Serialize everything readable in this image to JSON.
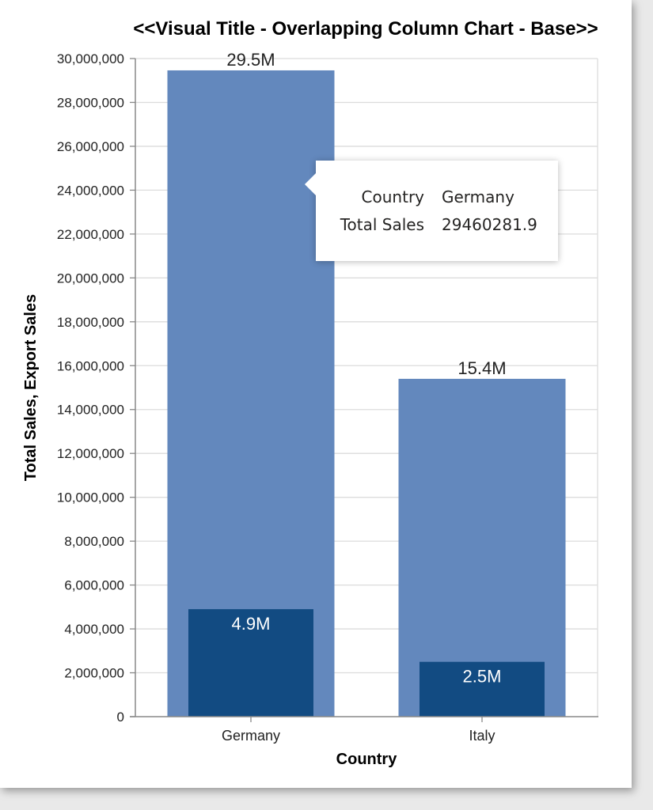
{
  "chart_data": {
    "type": "bar",
    "layout": "overlapping",
    "title": "<<Visual Title - Overlapping Column Chart - Base>>",
    "xlabel": "Country",
    "ylabel": "Total Sales, Export Sales",
    "categories": [
      "Germany",
      "Italy"
    ],
    "series": [
      {
        "values": [
          29460281.9,
          15400000
        ],
        "labels": [
          "29.5M",
          "15.4M"
        ],
        "color": "#6388bd"
      },
      {
        "values": [
          4900000,
          2500000
        ],
        "labels": [
          "4.9M",
          "2.5M"
        ],
        "color": "#124b82"
      }
    ],
    "ylim": [
      0,
      30000000
    ],
    "yticks": [
      0,
      2000000,
      4000000,
      6000000,
      8000000,
      10000000,
      12000000,
      14000000,
      16000000,
      18000000,
      20000000,
      22000000,
      24000000,
      26000000,
      28000000,
      30000000
    ],
    "ytick_labels": [
      "0",
      "2,000,000",
      "4,000,000",
      "6,000,000",
      "8,000,000",
      "10,000,000",
      "12,000,000",
      "14,000,000",
      "16,000,000",
      "18,000,000",
      "20,000,000",
      "22,000,000",
      "24,000,000",
      "26,000,000",
      "28,000,000",
      "30,000,000"
    ],
    "grid": true
  },
  "tooltip": {
    "rows": [
      {
        "key": "Country",
        "value": "Germany"
      },
      {
        "key": "Total Sales",
        "value": "29460281.9"
      }
    ]
  }
}
